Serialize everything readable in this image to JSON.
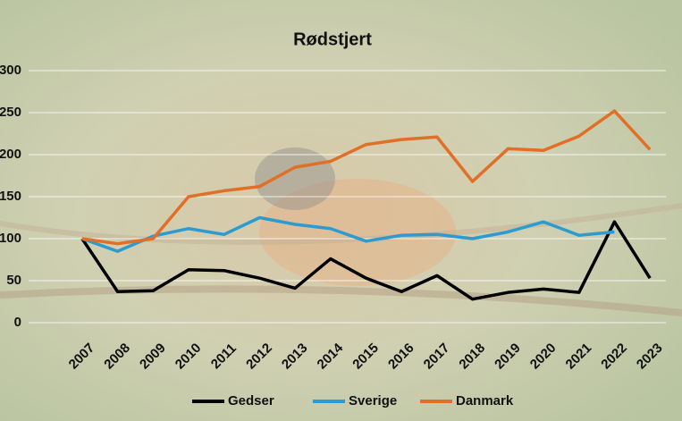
{
  "chart_data": {
    "type": "line",
    "title": "Rødstjert",
    "categories": [
      "2007",
      "2008",
      "2009",
      "2010",
      "2011",
      "2012",
      "2013",
      "2014",
      "2015",
      "2016",
      "2017",
      "2018",
      "2019",
      "2020",
      "2021",
      "2022",
      "2023"
    ],
    "series": [
      {
        "name": "Gedser",
        "color": "#000000",
        "values": [
          100,
          37,
          38,
          63,
          62,
          53,
          41,
          76,
          53,
          37,
          56,
          28,
          36,
          40,
          36,
          120,
          53
        ]
      },
      {
        "name": "Sverige",
        "color": "#2e9bd0",
        "values": [
          100,
          85,
          103,
          112,
          105,
          125,
          117,
          112,
          97,
          104,
          105,
          100,
          108,
          120,
          104,
          108,
          null
        ]
      },
      {
        "name": "Danmark",
        "color": "#e07028",
        "values": [
          100,
          94,
          100,
          150,
          157,
          162,
          185,
          192,
          212,
          218,
          221,
          168,
          207,
          205,
          222,
          252,
          206
        ]
      }
    ],
    "ylim": [
      0,
      300
    ],
    "yticks": [
      0,
      50,
      100,
      150,
      200,
      250,
      300
    ],
    "grid": true,
    "legend": "bottom"
  }
}
